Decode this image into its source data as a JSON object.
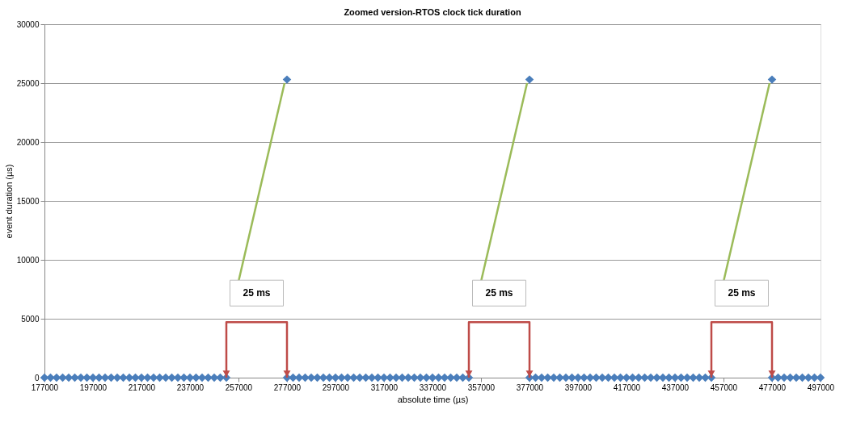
{
  "chart_data": {
    "type": "scatter",
    "title": "Zoomed version-RTOS clock tick duration",
    "xlabel": "absolute time (µs)",
    "ylabel": "event duration (µs)",
    "x": [
      177000,
      179500,
      182000,
      184500,
      187000,
      189500,
      192000,
      194500,
      197000,
      199500,
      202000,
      204500,
      207000,
      209500,
      212000,
      214500,
      217000,
      219500,
      222000,
      224500,
      227000,
      229500,
      232000,
      234500,
      237000,
      239500,
      242000,
      244500,
      247000,
      249500,
      252000,
      277000,
      277000,
      279500,
      282000,
      284500,
      287000,
      289500,
      292000,
      294500,
      297000,
      299500,
      302000,
      304500,
      307000,
      309500,
      312000,
      314500,
      317000,
      319500,
      322000,
      324500,
      327000,
      329500,
      332000,
      334500,
      337000,
      339500,
      342000,
      344500,
      347000,
      349500,
      352000,
      377000,
      377000,
      379500,
      382000,
      384500,
      387000,
      389500,
      392000,
      394500,
      397000,
      399500,
      402000,
      404500,
      407000,
      409500,
      412000,
      414500,
      417000,
      419500,
      422000,
      424500,
      427000,
      429500,
      432000,
      434500,
      437000,
      439500,
      442000,
      444500,
      447000,
      449500,
      452000,
      477000,
      477000,
      479500,
      482000,
      484500,
      487000,
      489500,
      492000,
      494500,
      497000
    ],
    "values": [
      0,
      0,
      0,
      0,
      0,
      0,
      0,
      0,
      0,
      0,
      0,
      0,
      0,
      0,
      0,
      0,
      0,
      0,
      0,
      0,
      0,
      0,
      0,
      0,
      0,
      0,
      0,
      0,
      0,
      0,
      0,
      25300,
      0,
      0,
      0,
      0,
      0,
      0,
      0,
      0,
      0,
      0,
      0,
      0,
      0,
      0,
      0,
      0,
      0,
      0,
      0,
      0,
      0,
      0,
      0,
      0,
      0,
      0,
      0,
      0,
      0,
      0,
      0,
      25300,
      0,
      0,
      0,
      0,
      0,
      0,
      0,
      0,
      0,
      0,
      0,
      0,
      0,
      0,
      0,
      0,
      0,
      0,
      0,
      0,
      0,
      0,
      0,
      0,
      0,
      0,
      0,
      0,
      0,
      0,
      0,
      25300,
      0,
      0,
      0,
      0,
      0,
      0,
      0,
      0,
      0
    ],
    "color": "#4a7ebb",
    "marker": "diamond",
    "xlim": [
      177000,
      497000
    ],
    "xticks": [
      177000,
      197000,
      217000,
      237000,
      257000,
      277000,
      297000,
      317000,
      337000,
      357000,
      377000,
      397000,
      417000,
      437000,
      457000,
      477000,
      497000
    ],
    "ylim": [
      0,
      30000
    ],
    "yticks": [
      0,
      5000,
      10000,
      15000,
      20000,
      25000,
      30000
    ],
    "grid": "y",
    "annotations": [
      {
        "text": "25 ms",
        "x": 277000,
        "y": 25300
      },
      {
        "text": "25 ms",
        "x": 377000,
        "y": 25300
      },
      {
        "text": "25 ms",
        "x": 477000,
        "y": 25300
      }
    ]
  }
}
